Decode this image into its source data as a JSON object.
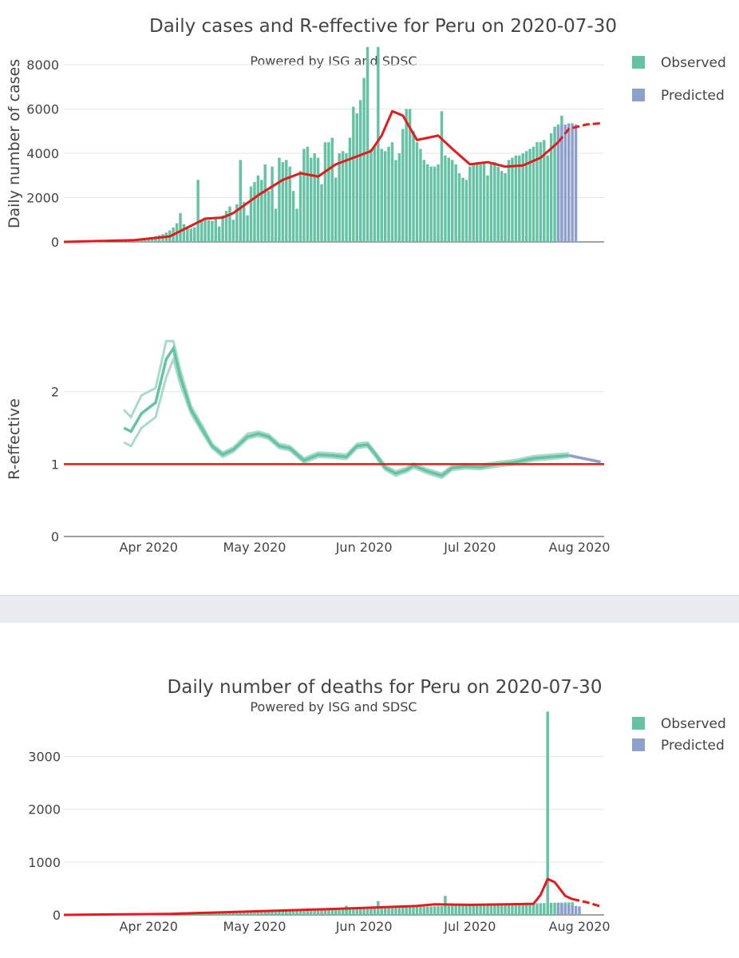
{
  "colors": {
    "observed": "#66c2a5",
    "predicted": "#8da0cb",
    "smooth": "#e41a1c",
    "grid": "#e6e6e6",
    "text": "#444444",
    "separator": "#e9edf2"
  },
  "chart_data": [
    {
      "id": "cases",
      "type": "bar",
      "title": "Daily cases and R-effective for Peru on 2020-07-30",
      "subtitle": "Powered by ISG and SDSC",
      "ylabel": "Daily number of cases",
      "ylim": [
        0,
        8000
      ],
      "yticks": [
        0,
        2000,
        4000,
        6000,
        8000
      ],
      "legend": [
        {
          "label": "Observed",
          "key": "observed"
        },
        {
          "label": "Predicted",
          "key": "predicted"
        }
      ],
      "start_day": 0,
      "observed": [
        0,
        0,
        0,
        0,
        0,
        0,
        0,
        2,
        3,
        5,
        8,
        10,
        13,
        20,
        28,
        35,
        40,
        47,
        60,
        70,
        80,
        90,
        110,
        130,
        160,
        200,
        250,
        300,
        350,
        420,
        520,
        650,
        840,
        1300,
        800,
        700,
        600,
        650,
        2800,
        1000,
        1000,
        980,
        950,
        1100,
        700,
        1200,
        1400,
        1600,
        1000,
        1700,
        3700,
        1800,
        1200,
        2500,
        2700,
        3000,
        2800,
        3500,
        2300,
        3400,
        1500,
        3800,
        3600,
        3700,
        3400,
        2300,
        1500,
        3200,
        4200,
        4300,
        3800,
        4000,
        3800,
        2600,
        4500,
        4500,
        4700,
        2900,
        4000,
        4100,
        4000,
        4700,
        6100,
        5800,
        6400,
        7400,
        8800,
        4200,
        4300,
        8800,
        4200,
        4100,
        4300,
        4500,
        3700,
        4000,
        5100,
        6000,
        6000,
        5000,
        4500,
        4200,
        3700,
        3500,
        3400,
        3400,
        3500,
        5900,
        3900,
        3800,
        3700,
        3500,
        3100,
        2900,
        2800,
        3400,
        3500,
        3600,
        3500,
        3600,
        3000,
        3600,
        3600,
        3400,
        3200,
        3100,
        3700,
        3800,
        3900,
        3900,
        4000,
        4100,
        4200,
        4300,
        4500,
        4500,
        4600,
        3900,
        4900,
        5200,
        5300,
        5700
      ],
      "predicted_start": 140,
      "predicted": [
        5200,
        5250,
        5300,
        5350,
        5350,
        5300
      ],
      "smooth": [
        [
          0,
          0
        ],
        [
          20,
          80
        ],
        [
          30,
          250
        ],
        [
          35,
          650
        ],
        [
          40,
          1050
        ],
        [
          45,
          1100
        ],
        [
          48,
          1300
        ],
        [
          55,
          2100
        ],
        [
          62,
          2800
        ],
        [
          67,
          3100
        ],
        [
          72,
          2950
        ],
        [
          77,
          3500
        ],
        [
          82,
          3800
        ],
        [
          87,
          4100
        ],
        [
          90,
          4800
        ],
        [
          93,
          5900
        ],
        [
          96,
          5700
        ],
        [
          100,
          4600
        ],
        [
          103,
          4700
        ],
        [
          106,
          4800
        ],
        [
          110,
          4200
        ],
        [
          115,
          3500
        ],
        [
          120,
          3600
        ],
        [
          125,
          3400
        ],
        [
          130,
          3450
        ],
        [
          135,
          3800
        ],
        [
          140,
          4500
        ],
        [
          143,
          5100
        ],
        [
          148,
          5300
        ],
        [
          152,
          5350
        ]
      ],
      "smooth_solid_until": 141
    },
    {
      "id": "reff",
      "type": "line",
      "ylabel": "R-effective",
      "ylim": [
        0,
        3
      ],
      "yticks": [
        0,
        1,
        2
      ],
      "threshold": 1,
      "xticks": [
        "Apr 2020",
        "May 2020",
        "Jun 2020",
        "Jul 2020",
        "Aug 2020"
      ],
      "xtick_days": [
        24,
        54,
        85,
        115,
        146
      ],
      "median": [
        [
          17,
          1.5
        ],
        [
          19,
          1.45
        ],
        [
          22,
          1.7
        ],
        [
          26,
          1.85
        ],
        [
          29,
          2.45
        ],
        [
          31,
          2.6
        ],
        [
          33,
          2.2
        ],
        [
          36,
          1.75
        ],
        [
          39,
          1.5
        ],
        [
          42,
          1.25
        ],
        [
          45,
          1.13
        ],
        [
          48,
          1.2
        ],
        [
          52,
          1.38
        ],
        [
          55,
          1.42
        ],
        [
          58,
          1.38
        ],
        [
          61,
          1.25
        ],
        [
          64,
          1.22
        ],
        [
          68,
          1.05
        ],
        [
          72,
          1.13
        ],
        [
          76,
          1.12
        ],
        [
          80,
          1.1
        ],
        [
          83,
          1.25
        ],
        [
          86,
          1.27
        ],
        [
          88,
          1.15
        ],
        [
          91,
          0.95
        ],
        [
          94,
          0.87
        ],
        [
          97,
          0.92
        ],
        [
          99,
          0.98
        ],
        [
          103,
          0.9
        ],
        [
          107,
          0.84
        ],
        [
          110,
          0.95
        ],
        [
          114,
          0.97
        ],
        [
          118,
          0.96
        ],
        [
          123,
          1.0
        ],
        [
          127,
          1.02
        ],
        [
          133,
          1.08
        ],
        [
          138,
          1.1
        ],
        [
          143,
          1.12
        ]
      ],
      "lower": [
        [
          17,
          1.3
        ],
        [
          19,
          1.25
        ],
        [
          22,
          1.5
        ],
        [
          26,
          1.65
        ],
        [
          29,
          2.2
        ],
        [
          31,
          2.45
        ],
        [
          33,
          2.1
        ],
        [
          36,
          1.7
        ],
        [
          39,
          1.45
        ],
        [
          42,
          1.22
        ],
        [
          45,
          1.1
        ],
        [
          48,
          1.17
        ],
        [
          52,
          1.35
        ],
        [
          55,
          1.39
        ],
        [
          58,
          1.35
        ],
        [
          61,
          1.22
        ],
        [
          64,
          1.19
        ],
        [
          68,
          1.02
        ],
        [
          72,
          1.1
        ],
        [
          76,
          1.09
        ],
        [
          80,
          1.07
        ],
        [
          83,
          1.22
        ],
        [
          86,
          1.24
        ],
        [
          88,
          1.12
        ],
        [
          91,
          0.92
        ],
        [
          94,
          0.84
        ],
        [
          97,
          0.89
        ],
        [
          99,
          0.95
        ],
        [
          103,
          0.87
        ],
        [
          107,
          0.81
        ],
        [
          110,
          0.92
        ],
        [
          114,
          0.94
        ],
        [
          118,
          0.93
        ],
        [
          123,
          0.97
        ],
        [
          127,
          0.99
        ],
        [
          133,
          1.05
        ],
        [
          138,
          1.07
        ],
        [
          143,
          1.1
        ]
      ],
      "upper": [
        [
          17,
          1.75
        ],
        [
          19,
          1.65
        ],
        [
          22,
          1.95
        ],
        [
          26,
          2.05
        ],
        [
          29,
          2.7
        ],
        [
          31,
          2.7
        ],
        [
          33,
          2.3
        ],
        [
          36,
          1.8
        ],
        [
          39,
          1.55
        ],
        [
          42,
          1.28
        ],
        [
          45,
          1.16
        ],
        [
          48,
          1.23
        ],
        [
          52,
          1.42
        ],
        [
          55,
          1.45
        ],
        [
          58,
          1.41
        ],
        [
          61,
          1.28
        ],
        [
          64,
          1.25
        ],
        [
          68,
          1.08
        ],
        [
          72,
          1.16
        ],
        [
          76,
          1.15
        ],
        [
          80,
          1.13
        ],
        [
          83,
          1.28
        ],
        [
          86,
          1.3
        ],
        [
          88,
          1.18
        ],
        [
          91,
          0.98
        ],
        [
          94,
          0.9
        ],
        [
          97,
          0.95
        ],
        [
          99,
          1.01
        ],
        [
          103,
          0.93
        ],
        [
          107,
          0.87
        ],
        [
          110,
          0.98
        ],
        [
          114,
          1.0
        ],
        [
          118,
          0.99
        ],
        [
          123,
          1.03
        ],
        [
          127,
          1.05
        ],
        [
          133,
          1.11
        ],
        [
          138,
          1.13
        ],
        [
          143,
          1.15
        ]
      ],
      "predicted_line": [
        [
          143,
          1.12
        ],
        [
          147,
          1.08
        ],
        [
          152,
          1.03
        ]
      ]
    },
    {
      "id": "deaths",
      "type": "bar",
      "title": "Daily number of deaths for Peru on 2020-07-30",
      "subtitle": "Powered by ISG and SDSC",
      "ylim": [
        0,
        3900
      ],
      "yticks": [
        0,
        1000,
        2000,
        3000
      ],
      "xticks": [
        "Apr 2020",
        "May 2020",
        "Jun 2020",
        "Jul 2020",
        "Aug 2020"
      ],
      "xtick_days": [
        24,
        54,
        85,
        115,
        146
      ],
      "legend": [
        {
          "label": "Observed",
          "key": "observed"
        },
        {
          "label": "Predicted",
          "key": "predicted"
        }
      ],
      "observed": [
        0,
        0,
        0,
        0,
        0,
        0,
        0,
        0,
        0,
        0,
        0,
        0,
        0,
        0,
        0,
        0,
        0,
        1,
        1,
        2,
        3,
        4,
        5,
        6,
        7,
        8,
        9,
        10,
        11,
        12,
        13,
        14,
        16,
        18,
        20,
        22,
        24,
        26,
        28,
        30,
        32,
        34,
        36,
        38,
        40,
        42,
        44,
        46,
        48,
        50,
        52,
        54,
        56,
        58,
        60,
        62,
        64,
        66,
        68,
        70,
        72,
        74,
        76,
        78,
        80,
        82,
        84,
        86,
        88,
        90,
        92,
        94,
        96,
        98,
        100,
        102,
        104,
        106,
        108,
        110,
        112,
        114,
        116,
        118,
        120,
        122,
        124,
        126,
        128,
        130,
        132,
        134,
        136,
        138,
        140,
        142,
        144,
        146,
        148,
        150,
        152,
        154,
        156,
        158,
        160,
        162,
        164,
        166,
        168,
        170,
        172,
        174,
        176,
        178,
        180,
        182,
        184,
        186,
        188,
        190,
        192,
        194,
        196,
        198,
        200,
        202,
        204,
        206,
        208,
        210,
        212,
        214,
        216,
        218,
        220,
        222,
        224,
        226,
        228,
        230,
        232,
        234,
        236,
        238,
        240
      ],
      "spikes": [
        [
          55,
          90
        ],
        [
          80,
          170
        ],
        [
          89,
          260
        ],
        [
          108,
          360
        ],
        [
          137,
          3850
        ]
      ],
      "predicted_start": 140,
      "predicted": [
        230,
        215,
        200,
        190,
        180,
        170,
        160
      ],
      "smooth": [
        [
          0,
          0
        ],
        [
          30,
          20
        ],
        [
          45,
          50
        ],
        [
          60,
          80
        ],
        [
          75,
          110
        ],
        [
          88,
          140
        ],
        [
          100,
          170
        ],
        [
          105,
          200
        ],
        [
          115,
          190
        ],
        [
          125,
          200
        ],
        [
          133,
          210
        ],
        [
          135,
          380
        ],
        [
          137,
          680
        ],
        [
          139,
          620
        ],
        [
          142,
          360
        ],
        [
          144,
          300
        ],
        [
          148,
          240
        ],
        [
          152,
          160
        ]
      ],
      "smooth_solid_until": 144
    }
  ]
}
